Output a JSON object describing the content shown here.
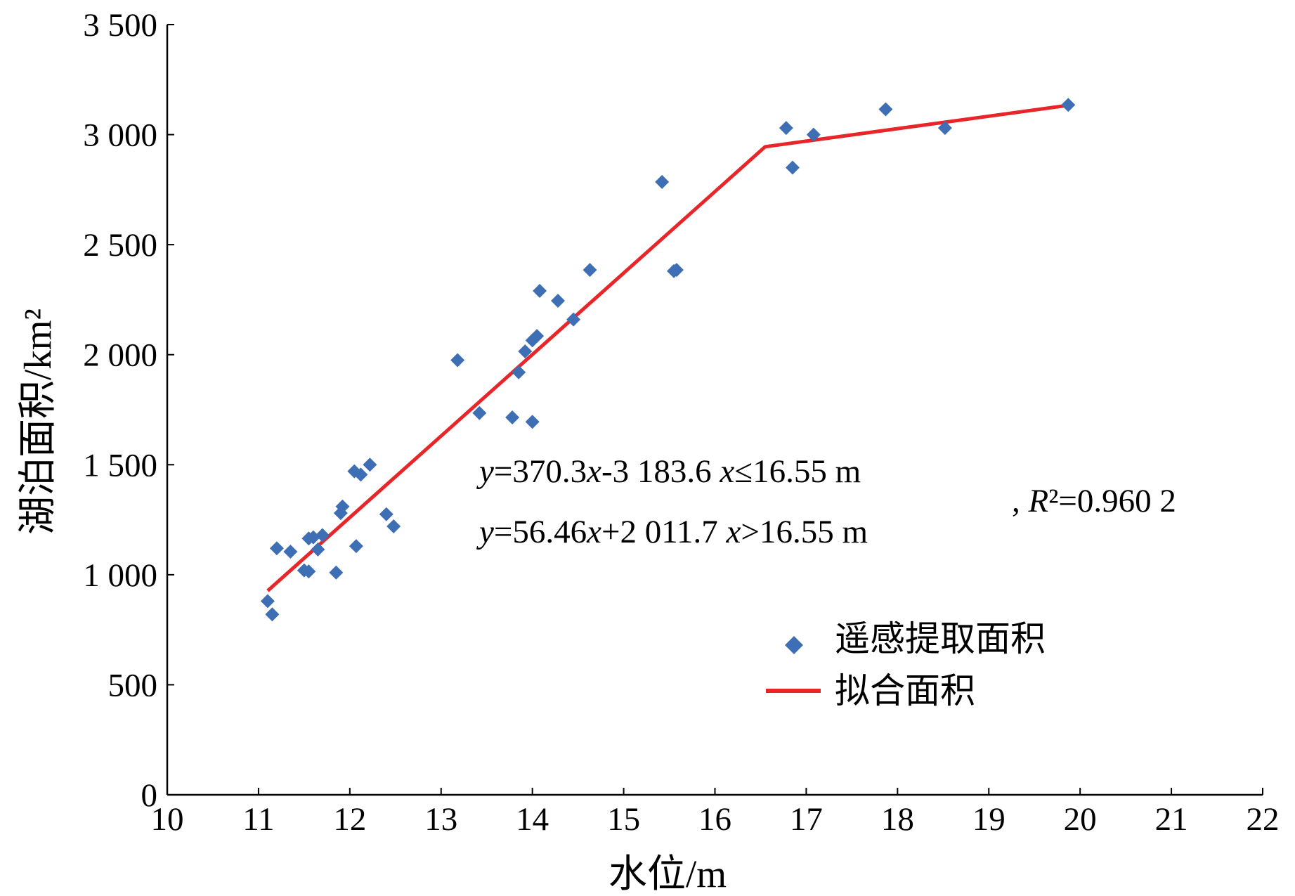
{
  "chart_data": {
    "type": "scatter",
    "xlabel": "水位/m",
    "ylabel": "湖泊面积/km²",
    "xlim": [
      10,
      22
    ],
    "ylim": [
      0,
      3500
    ],
    "xticks": [
      "10",
      "11",
      "12",
      "13",
      "14",
      "15",
      "16",
      "17",
      "18",
      "19",
      "20",
      "21",
      "22"
    ],
    "yticks": [
      "0",
      "500",
      "1 000",
      "1 500",
      "2 000",
      "2 500",
      "3 000",
      "3 500"
    ],
    "grid": false,
    "legend_position": "lower-right",
    "series": [
      {
        "name": "遥感提取面积",
        "kind": "scatter",
        "marker": "diamond",
        "color": "#3e6fb5",
        "points": [
          [
            11.1,
            880
          ],
          [
            11.15,
            820
          ],
          [
            11.2,
            1120
          ],
          [
            11.35,
            1105
          ],
          [
            11.5,
            1020
          ],
          [
            11.55,
            1015
          ],
          [
            11.55,
            1165
          ],
          [
            11.6,
            1170
          ],
          [
            11.65,
            1115
          ],
          [
            11.7,
            1180
          ],
          [
            11.85,
            1010
          ],
          [
            11.9,
            1280
          ],
          [
            11.92,
            1310
          ],
          [
            12.05,
            1470
          ],
          [
            12.07,
            1130
          ],
          [
            12.12,
            1455
          ],
          [
            12.22,
            1500
          ],
          [
            12.4,
            1275
          ],
          [
            12.48,
            1220
          ],
          [
            13.18,
            1975
          ],
          [
            13.42,
            1735
          ],
          [
            13.78,
            1715
          ],
          [
            13.85,
            1920
          ],
          [
            13.92,
            2015
          ],
          [
            14.0,
            2065
          ],
          [
            14.0,
            1695
          ],
          [
            14.05,
            2085
          ],
          [
            14.08,
            2290
          ],
          [
            14.28,
            2245
          ],
          [
            14.45,
            2160
          ],
          [
            14.63,
            2385
          ],
          [
            15.42,
            2785
          ],
          [
            15.55,
            2380
          ],
          [
            15.58,
            2385
          ],
          [
            16.78,
            3030
          ],
          [
            16.85,
            2850
          ],
          [
            17.08,
            3000
          ],
          [
            17.87,
            3115
          ],
          [
            18.52,
            3030
          ],
          [
            19.87,
            3135
          ]
        ]
      },
      {
        "name": "拟合面积",
        "kind": "line",
        "color": "#e8262a",
        "points": [
          [
            11.1,
            927
          ],
          [
            16.55,
            2945
          ],
          [
            19.87,
            3133
          ]
        ]
      }
    ],
    "annotations": {
      "eq1": "y=370.3x-3 183.6  x≤16.55 m",
      "eq2": "y=56.46x+2 011.7  x>16.55 m",
      "r2": ", R²=0.960 2"
    }
  }
}
